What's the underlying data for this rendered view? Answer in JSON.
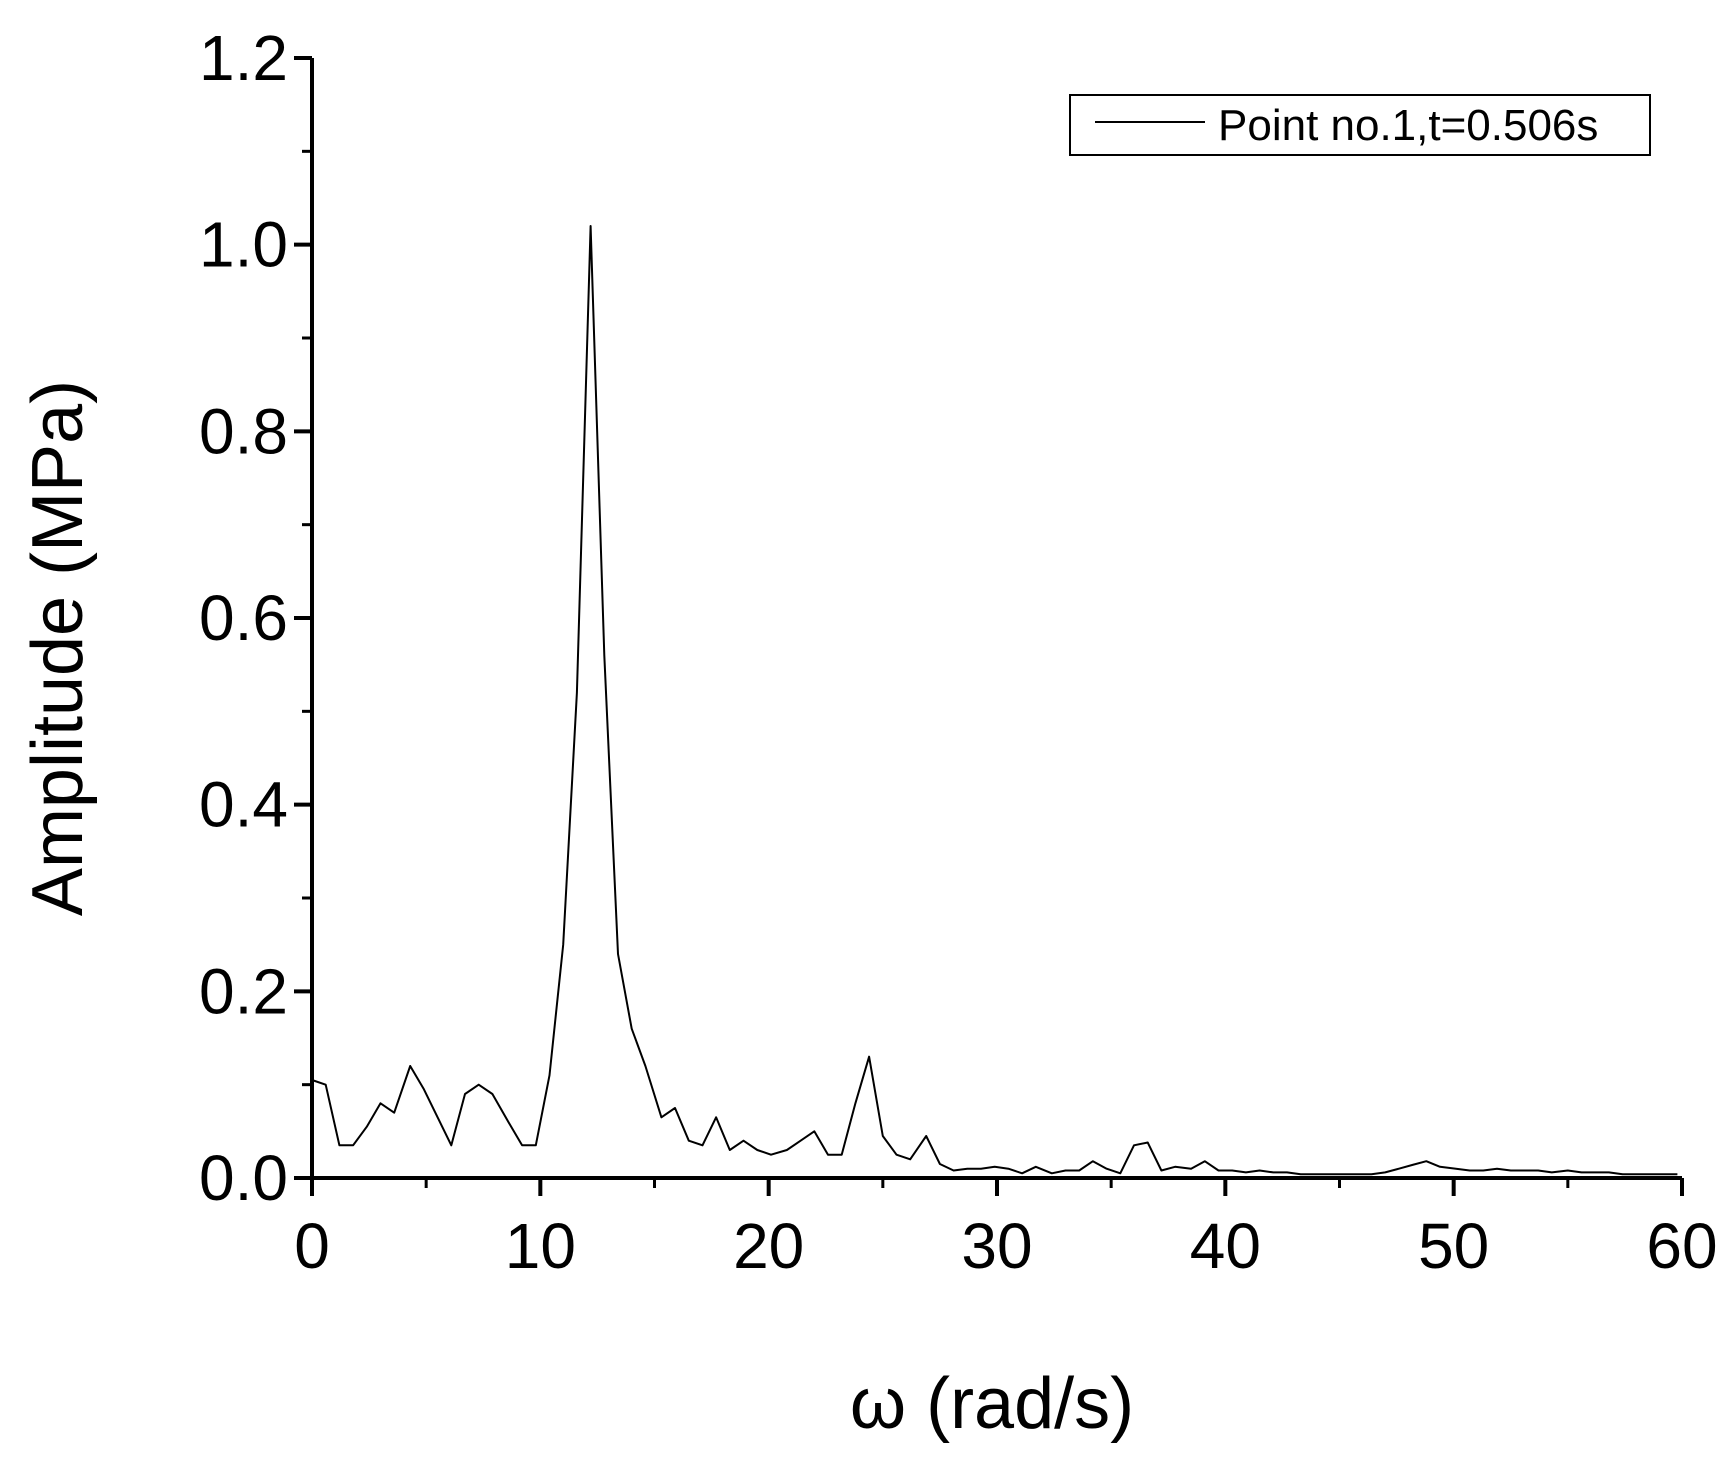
{
  "chart_data": {
    "type": "line",
    "title": "",
    "xlabel": "ω (rad/s)",
    "ylabel": "Amplitude (MPa)",
    "xlim": [
      0,
      60
    ],
    "ylim": [
      0,
      1.2
    ],
    "x_ticks": [
      0,
      10,
      20,
      30,
      40,
      50,
      60
    ],
    "x_tick_labels": [
      "0",
      "10",
      "20",
      "30",
      "40",
      "50",
      "60"
    ],
    "y_ticks": [
      0.0,
      0.2,
      0.4,
      0.6,
      0.8,
      1.0,
      1.2
    ],
    "y_tick_labels": [
      "0.0",
      "0.2",
      "0.4",
      "0.6",
      "0.8",
      "1.0",
      "1.2"
    ],
    "grid": false,
    "legend_position": "top-right",
    "line_color": "#000000",
    "series": [
      {
        "name": "Point no.1,t=0.506s",
        "x": [
          0,
          0.6,
          1.2,
          1.8,
          2.4,
          3.0,
          3.6,
          4.3,
          4.9,
          5.5,
          6.1,
          6.7,
          7.3,
          7.9,
          8.6,
          9.2,
          9.8,
          10.4,
          11.0,
          11.6,
          12.2,
          12.8,
          13.4,
          14.0,
          14.6,
          15.3,
          15.9,
          16.5,
          17.1,
          17.7,
          18.3,
          18.9,
          19.5,
          20.1,
          20.8,
          21.4,
          22.0,
          22.6,
          23.2,
          23.8,
          24.4,
          25.0,
          25.6,
          26.2,
          26.9,
          27.5,
          28.1,
          28.7,
          29.3,
          29.9,
          30.5,
          31.1,
          31.7,
          32.4,
          33.0,
          33.6,
          34.2,
          34.8,
          35.4,
          36.0,
          36.6,
          37.2,
          37.8,
          38.5,
          39.1,
          39.7,
          40.3,
          40.9,
          41.5,
          42.1,
          42.7,
          43.3,
          44.0,
          44.6,
          45.2,
          45.8,
          46.4,
          47.0,
          47.6,
          48.2,
          48.8,
          49.4,
          50.1,
          50.7,
          51.3,
          51.9,
          52.5,
          53.1,
          53.7,
          54.3,
          55.0,
          55.6,
          56.2,
          56.8,
          57.4,
          58.0,
          58.6,
          59.2,
          59.8
        ],
        "y": [
          0.105,
          0.1,
          0.035,
          0.035,
          0.055,
          0.08,
          0.07,
          0.12,
          0.095,
          0.065,
          0.035,
          0.09,
          0.1,
          0.09,
          0.06,
          0.035,
          0.035,
          0.11,
          0.25,
          0.52,
          1.02,
          0.56,
          0.24,
          0.16,
          0.12,
          0.065,
          0.075,
          0.04,
          0.035,
          0.065,
          0.03,
          0.04,
          0.03,
          0.025,
          0.03,
          0.04,
          0.05,
          0.025,
          0.025,
          0.08,
          0.13,
          0.045,
          0.025,
          0.02,
          0.045,
          0.015,
          0.008,
          0.01,
          0.01,
          0.012,
          0.01,
          0.005,
          0.012,
          0.005,
          0.008,
          0.008,
          0.018,
          0.01,
          0.005,
          0.035,
          0.038,
          0.008,
          0.012,
          0.01,
          0.018,
          0.008,
          0.008,
          0.006,
          0.008,
          0.006,
          0.006,
          0.004,
          0.004,
          0.004,
          0.004,
          0.004,
          0.004,
          0.006,
          0.01,
          0.014,
          0.018,
          0.012,
          0.01,
          0.008,
          0.008,
          0.01,
          0.008,
          0.008,
          0.008,
          0.006,
          0.008,
          0.006,
          0.006,
          0.006,
          0.004,
          0.004,
          0.004,
          0.004,
          0.004
        ]
      }
    ]
  }
}
